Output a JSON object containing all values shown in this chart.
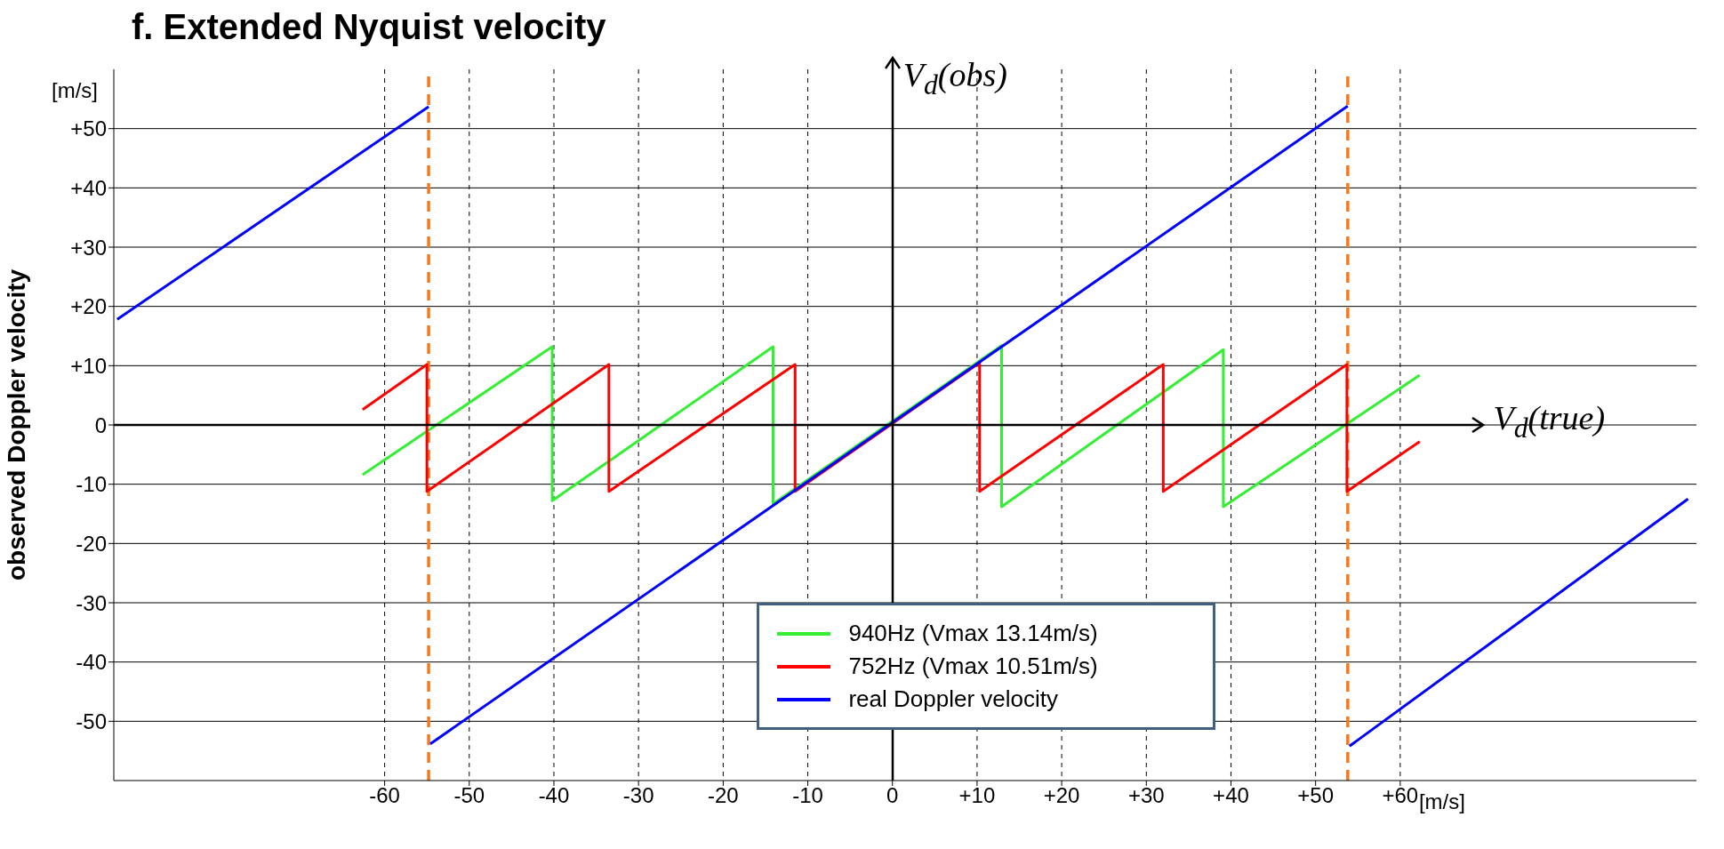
{
  "chart_data": {
    "type": "line",
    "title": "f. Extended Nyquist velocity",
    "xlabel": "V$_{d}$(true)",
    "ylabel": "observed Doppler velocity",
    "annotations": [
      "V$_{d}$(obs)",
      "[m/s]",
      "[m/s]"
    ],
    "series": [
      {
        "name": "940Hz (Vmax 13.14m/s)",
        "color": "#33ee33",
        "x": [
          -62.6,
          -40.2,
          -40.2,
          -14.1,
          -14.1,
          12.9,
          12.9,
          39.1,
          39.1,
          62.3
        ],
        "values": [
          -8.4,
          13.2,
          -12.8,
          13.2,
          -13.3,
          13.4,
          -13.8,
          12.7,
          -13.8,
          8.4
        ]
      },
      {
        "name": "752Hz (Vmax 10.51m/s)",
        "color": "#ff0000",
        "x": [
          -62.6,
          -55,
          -55,
          -33.5,
          -33.5,
          -11.5,
          -11.5,
          10.3,
          10.3,
          32,
          32,
          53.7,
          53.7,
          62.3
        ],
        "values": [
          2.6,
          10.2,
          -11.2,
          10.2,
          -11.2,
          10.2,
          -11.2,
          10.5,
          -11.2,
          10.2,
          -11.2,
          10.2,
          -11.2,
          -2.8
        ]
      },
      {
        "name": "real Doppler velocity",
        "color": "#0000ff",
        "x": [
          -91.6,
          -54.8,
          -54.7,
          -54.6,
          53.8,
          53.9,
          54,
          94
        ],
        "values": [
          17.8,
          53.7,
          null,
          -53.8,
          53.8,
          null,
          -54.2,
          -12.5
        ]
      }
    ],
    "xlim": [
      -92,
      95
    ],
    "ylim": [
      -60,
      60
    ],
    "xticks": [
      -60,
      -50,
      -40,
      -30,
      -20,
      -10,
      0,
      {
        "value": 10,
        "label": "+10"
      },
      {
        "value": 20,
        "label": "+20"
      },
      {
        "value": 30,
        "label": "+30"
      },
      {
        "value": 40,
        "label": "+40"
      },
      {
        "value": 50,
        "label": "+50"
      },
      {
        "value": 60,
        "label": "+60"
      }
    ],
    "yticks": [
      -50,
      -40,
      -30,
      -20,
      -10,
      0,
      {
        "value": 10,
        "label": "+10"
      },
      {
        "value": 20,
        "label": "+20"
      },
      {
        "value": 30,
        "label": "+30"
      },
      {
        "value": 40,
        "label": "+40"
      },
      {
        "value": 50,
        "label": "+50"
      }
    ],
    "ref_lines": [
      {
        "axis": "x",
        "value": -54.8,
        "color": "#f47a20",
        "line_style": "dashed"
      },
      {
        "axis": "x",
        "value": 53.8,
        "color": "#f47a20",
        "line_style": "dashed"
      }
    ],
    "grid": true,
    "legend": "bottom",
    "marker": "none",
    "line_style": "solid"
  }
}
